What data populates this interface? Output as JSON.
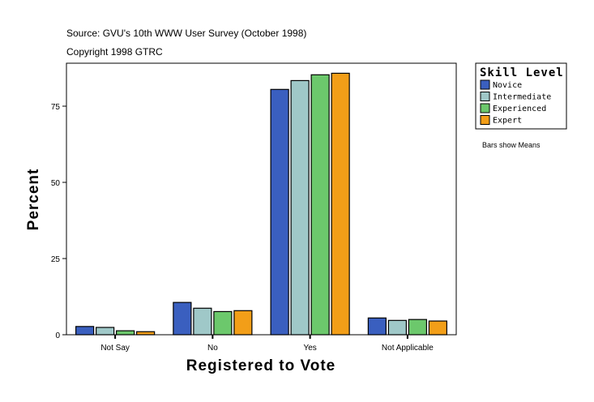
{
  "chart_data": {
    "type": "bar",
    "source": "Source: GVU's 10th WWW User Survey (October 1998)",
    "copyright": "Copyright 1998 GTRC",
    "xlabel": "Registered to Vote",
    "ylabel": "Percent",
    "ylim": [
      0,
      89
    ],
    "yticks": [
      0,
      25,
      50,
      75
    ],
    "categories": [
      "Not Say",
      "No",
      "Yes",
      "Not Applicable"
    ],
    "legend_title": "Skill Level",
    "legend_placement": "right",
    "note": "Bars show Means",
    "series": [
      {
        "name": "Novice",
        "color": "#3a5fbf",
        "values": [
          2.7,
          10.6,
          80.5,
          5.5
        ]
      },
      {
        "name": "Intermediate",
        "color": "#9fc8c8",
        "values": [
          2.4,
          8.7,
          83.4,
          4.7
        ]
      },
      {
        "name": "Experienced",
        "color": "#6cc86c",
        "values": [
          1.3,
          7.6,
          85.3,
          5.0
        ]
      },
      {
        "name": "Expert",
        "color": "#f29e18",
        "values": [
          1.0,
          7.9,
          85.8,
          4.5
        ]
      }
    ]
  }
}
